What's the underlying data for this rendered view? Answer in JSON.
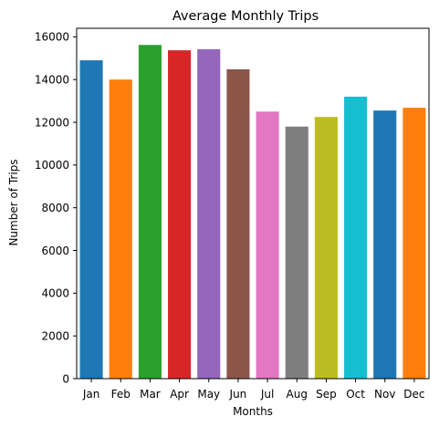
{
  "chart_data": {
    "type": "bar",
    "title": "Average Monthly Trips",
    "xlabel": "Months",
    "ylabel": "Number of Trips",
    "categories": [
      "Jan",
      "Feb",
      "Mar",
      "Apr",
      "May",
      "Jun",
      "Jul",
      "Aug",
      "Sep",
      "Oct",
      "Nov",
      "Dec"
    ],
    "values": [
      14900,
      14000,
      15620,
      15370,
      15420,
      14480,
      12500,
      11800,
      12250,
      13200,
      12550,
      12680
    ],
    "colors": [
      "#1f77b4",
      "#ff7f0e",
      "#2ca02c",
      "#d62728",
      "#9467bd",
      "#8c564b",
      "#e377c2",
      "#7f7f7f",
      "#bcbd22",
      "#17becf",
      "#1f77b4",
      "#ff7f0e"
    ],
    "ylim": [
      0,
      16400
    ],
    "yticks": [
      0,
      2000,
      4000,
      6000,
      8000,
      10000,
      12000,
      14000,
      16000
    ],
    "ytick_labels": [
      "0",
      "2000",
      "4000",
      "6000",
      "8000",
      "10000",
      "12000",
      "14000",
      "16000"
    ],
    "grid": false,
    "legend": "none"
  }
}
